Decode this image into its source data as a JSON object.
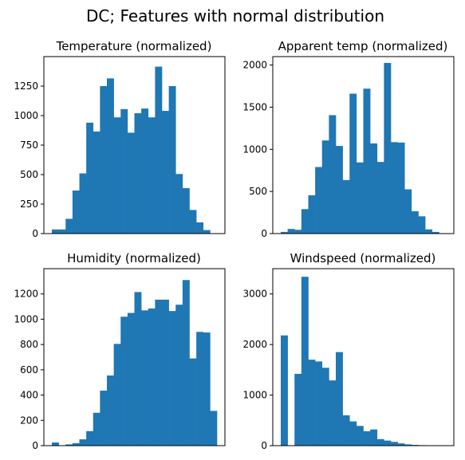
{
  "title": "DC; Features with normal distribution",
  "colors": {
    "bar": "#1f77b4",
    "axis": "#000000"
  },
  "chart_data": [
    {
      "type": "bar",
      "title": "Temperature (normalized)",
      "ylim": [
        0,
        1500
      ],
      "yticks": [
        0,
        250,
        500,
        750,
        1000,
        1250
      ],
      "values": [
        35,
        35,
        125,
        365,
        510,
        940,
        865,
        1250,
        1315,
        985,
        1055,
        855,
        1020,
        1060,
        985,
        1415,
        1040,
        1250,
        505,
        385,
        200,
        95,
        30,
        0
      ],
      "grid": false,
      "legend": "none"
    },
    {
      "type": "bar",
      "title": "Apparent temp (normalized)",
      "ylim": [
        0,
        2100
      ],
      "yticks": [
        0,
        500,
        1000,
        1500,
        2000
      ],
      "values": [
        20,
        55,
        45,
        290,
        455,
        790,
        1105,
        1405,
        1040,
        635,
        1660,
        845,
        1720,
        1070,
        850,
        2025,
        1085,
        1080,
        525,
        265,
        205,
        50,
        20,
        5
      ],
      "grid": false,
      "legend": "none"
    },
    {
      "type": "bar",
      "title": "Humidity (normalized)",
      "ylim": [
        0,
        1400
      ],
      "yticks": [
        0,
        200,
        400,
        600,
        800,
        1000,
        1200
      ],
      "values": [
        25,
        0,
        10,
        20,
        50,
        115,
        260,
        435,
        555,
        805,
        1020,
        1050,
        1215,
        1070,
        1085,
        1155,
        1155,
        1065,
        1115,
        1310,
        690,
        900,
        895,
        275
      ],
      "grid": false,
      "legend": "none"
    },
    {
      "type": "bar",
      "title": "Windspeed (normalized)",
      "ylim": [
        0,
        3500
      ],
      "yticks": [
        0,
        1000,
        2000,
        3000
      ],
      "values": [
        2180,
        0,
        1420,
        3340,
        1700,
        1665,
        1540,
        1290,
        1850,
        600,
        480,
        390,
        285,
        320,
        130,
        100,
        75,
        45,
        25,
        15,
        10,
        5,
        5,
        5
      ],
      "grid": false,
      "legend": "none"
    }
  ]
}
